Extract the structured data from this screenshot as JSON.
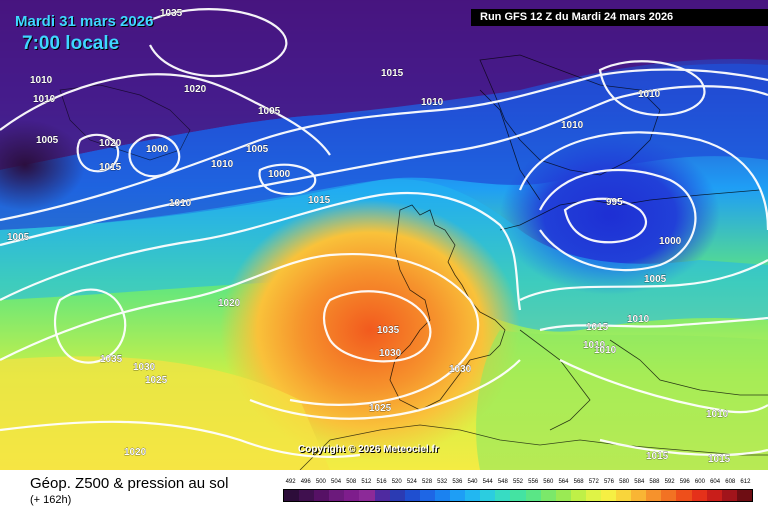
{
  "header": {
    "date": "Mardi 31 mars 2026",
    "time": "7:00 locale",
    "run": "Run GFS 12 Z du Mardi 24 mars 2026"
  },
  "copyright": "Copyright © 2026 Meteociel.fr",
  "footer": {
    "title": "Géop. Z500 & pression au sol",
    "subtitle": "(+ 162h)"
  },
  "legend": {
    "values": [
      "492",
      "496",
      "500",
      "504",
      "508",
      "512",
      "516",
      "520",
      "524",
      "528",
      "532",
      "536",
      "540",
      "544",
      "548",
      "552",
      "556",
      "560",
      "564",
      "568",
      "572",
      "576",
      "580",
      "584",
      "588",
      "592",
      "596",
      "600",
      "604",
      "608",
      "612"
    ],
    "colors": [
      "#2d0d3a",
      "#40104f",
      "#561165",
      "#6c1a7c",
      "#7e1d8c",
      "#8c2a98",
      "#4f2aa0",
      "#2b3bb3",
      "#1f4fd0",
      "#1e66e5",
      "#1b82f0",
      "#1e9ef5",
      "#22b7f1",
      "#2bcde0",
      "#37dcc3",
      "#44e3a2",
      "#5ae686",
      "#7be86a",
      "#9aea54",
      "#bff047",
      "#dff346",
      "#f6ef43",
      "#f9d53b",
      "#f9b534",
      "#f6922c",
      "#f27223",
      "#ee4f1b",
      "#e5311a",
      "#c91e1a",
      "#a2141b",
      "#6e0d13"
    ]
  },
  "map": {
    "isobar_labels": [
      "1035",
      "1010",
      "1010",
      "1020",
      "1015",
      "1005",
      "1000",
      "1005",
      "1020",
      "1005",
      "1000",
      "1015",
      "1010",
      "1015",
      "1005",
      "1020",
      "1035",
      "1030",
      "1025",
      "1035",
      "1030",
      "1030",
      "1025",
      "1020",
      "1010",
      "1010",
      "1010",
      "1010",
      "995",
      "1000",
      "1005",
      "1015",
      "1010",
      "1010",
      "1010",
      "1010",
      "1015",
      "1015"
    ]
  }
}
